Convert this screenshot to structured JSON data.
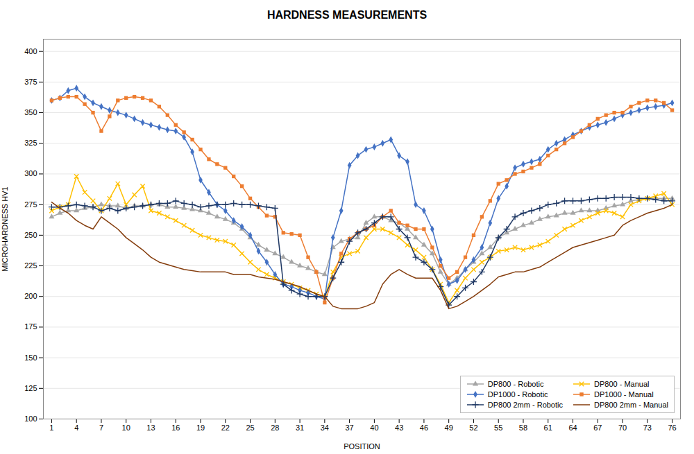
{
  "chart_data": {
    "type": "line",
    "title": "HARDNESS MEASUREMENTS",
    "xlabel": "POSITION",
    "ylabel": "MICROHARDNESS HV1",
    "x": [
      1,
      2,
      3,
      4,
      5,
      6,
      7,
      8,
      9,
      10,
      11,
      12,
      13,
      14,
      15,
      16,
      17,
      18,
      19,
      20,
      21,
      22,
      23,
      24,
      25,
      26,
      27,
      28,
      29,
      30,
      31,
      32,
      33,
      34,
      35,
      36,
      37,
      38,
      39,
      40,
      41,
      42,
      43,
      44,
      45,
      46,
      47,
      48,
      49,
      50,
      51,
      52,
      53,
      54,
      55,
      56,
      57,
      58,
      59,
      60,
      61,
      62,
      63,
      64,
      65,
      66,
      67,
      68,
      69,
      70,
      71,
      72,
      73,
      74,
      75,
      76
    ],
    "xlim": [
      0,
      77
    ],
    "xticks": [
      1,
      4,
      7,
      10,
      13,
      16,
      19,
      22,
      25,
      28,
      31,
      34,
      37,
      40,
      43,
      46,
      49,
      52,
      55,
      58,
      61,
      64,
      67,
      70,
      73,
      76
    ],
    "ylim": [
      100,
      410
    ],
    "yticks": [
      100,
      125,
      150,
      175,
      200,
      225,
      250,
      275,
      300,
      325,
      350,
      375,
      400
    ],
    "grid": true,
    "legend": "lower right",
    "series": [
      {
        "name": "DP800 - Robotic",
        "color": "#a6a6a6",
        "marker": "triangle",
        "values": [
          265,
          268,
          270,
          270,
          272,
          273,
          275,
          274,
          274,
          272,
          274,
          274,
          275,
          275,
          273,
          273,
          272,
          271,
          270,
          268,
          265,
          263,
          260,
          255,
          248,
          242,
          238,
          235,
          232,
          228,
          225,
          223,
          220,
          218,
          240,
          245,
          247,
          248,
          260,
          265,
          265,
          262,
          260,
          255,
          248,
          242,
          235,
          220,
          210,
          215,
          222,
          228,
          235,
          240,
          248,
          252,
          255,
          258,
          260,
          263,
          265,
          266,
          268,
          268,
          270,
          270,
          270,
          272,
          274,
          275,
          278,
          279,
          280,
          280,
          280,
          280
        ]
      },
      {
        "name": "DP800 - Manual",
        "color": "#ffc000",
        "marker": "x",
        "values": [
          270,
          273,
          275,
          298,
          285,
          278,
          270,
          280,
          292,
          275,
          283,
          290,
          270,
          268,
          265,
          262,
          258,
          254,
          250,
          248,
          246,
          245,
          242,
          235,
          228,
          222,
          218,
          215,
          212,
          210,
          207,
          205,
          202,
          200,
          220,
          232,
          235,
          237,
          248,
          255,
          255,
          252,
          248,
          242,
          238,
          232,
          222,
          210,
          195,
          205,
          215,
          222,
          228,
          232,
          237,
          238,
          240,
          238,
          240,
          242,
          245,
          250,
          255,
          258,
          262,
          265,
          268,
          270,
          268,
          265,
          275,
          278,
          280,
          282,
          284,
          275
        ]
      },
      {
        "name": "DP1000 - Robotic",
        "color": "#4472c4",
        "marker": "diamond",
        "values": [
          360,
          362,
          368,
          370,
          363,
          358,
          355,
          352,
          350,
          348,
          345,
          342,
          340,
          338,
          336,
          335,
          330,
          318,
          295,
          285,
          275,
          270,
          262,
          257,
          250,
          237,
          228,
          218,
          210,
          208,
          205,
          203,
          200,
          198,
          248,
          270,
          307,
          315,
          320,
          322,
          325,
          328,
          315,
          310,
          275,
          270,
          255,
          230,
          210,
          213,
          222,
          230,
          240,
          260,
          280,
          290,
          305,
          308,
          310,
          312,
          320,
          325,
          328,
          332,
          335,
          338,
          340,
          342,
          345,
          348,
          350,
          352,
          354,
          355,
          356,
          358
        ]
      },
      {
        "name": "DP1000 - Manual",
        "color": "#ed7d31",
        "marker": "square",
        "values": [
          360,
          362,
          363,
          363,
          357,
          350,
          335,
          347,
          360,
          362,
          363,
          362,
          360,
          355,
          348,
          340,
          334,
          328,
          320,
          312,
          308,
          305,
          298,
          290,
          280,
          273,
          266,
          265,
          252,
          251,
          250,
          232,
          220,
          195,
          215,
          235,
          247,
          252,
          255,
          258,
          265,
          270,
          260,
          258,
          255,
          255,
          240,
          225,
          215,
          220,
          232,
          250,
          265,
          278,
          292,
          295,
          300,
          302,
          305,
          308,
          315,
          320,
          325,
          330,
          335,
          340,
          345,
          348,
          350,
          350,
          355,
          358,
          360,
          360,
          358,
          352
        ]
      },
      {
        "name": "DP800 2mm - Robotic",
        "color": "#1f3864",
        "marker": "plus",
        "values": [
          273,
          273,
          274,
          275,
          274,
          273,
          270,
          272,
          270,
          272,
          273,
          274,
          275,
          276,
          276,
          278,
          276,
          275,
          273,
          274,
          275,
          275,
          276,
          275,
          275,
          274,
          273,
          272,
          210,
          205,
          202,
          200,
          200,
          200,
          215,
          228,
          245,
          252,
          255,
          260,
          265,
          265,
          255,
          248,
          232,
          228,
          222,
          208,
          193,
          200,
          207,
          212,
          220,
          232,
          248,
          255,
          265,
          268,
          270,
          272,
          275,
          276,
          278,
          278,
          278,
          279,
          280,
          280,
          281,
          281,
          281,
          280,
          280,
          279,
          278,
          278
        ]
      },
      {
        "name": "DP800 2mm - Manual",
        "color": "#843c0c",
        "marker": "none",
        "values": [
          277,
          272,
          268,
          262,
          258,
          255,
          265,
          260,
          255,
          248,
          243,
          238,
          232,
          228,
          226,
          224,
          222,
          221,
          220,
          220,
          220,
          220,
          218,
          218,
          218,
          216,
          215,
          214,
          212,
          210,
          208,
          205,
          202,
          200,
          192,
          190,
          190,
          190,
          192,
          195,
          210,
          218,
          222,
          218,
          215,
          215,
          215,
          205,
          190,
          192,
          196,
          200,
          205,
          210,
          216,
          218,
          220,
          220,
          222,
          224,
          228,
          232,
          236,
          240,
          242,
          244,
          246,
          248,
          250,
          258,
          262,
          265,
          268,
          270,
          272,
          275
        ]
      }
    ]
  }
}
